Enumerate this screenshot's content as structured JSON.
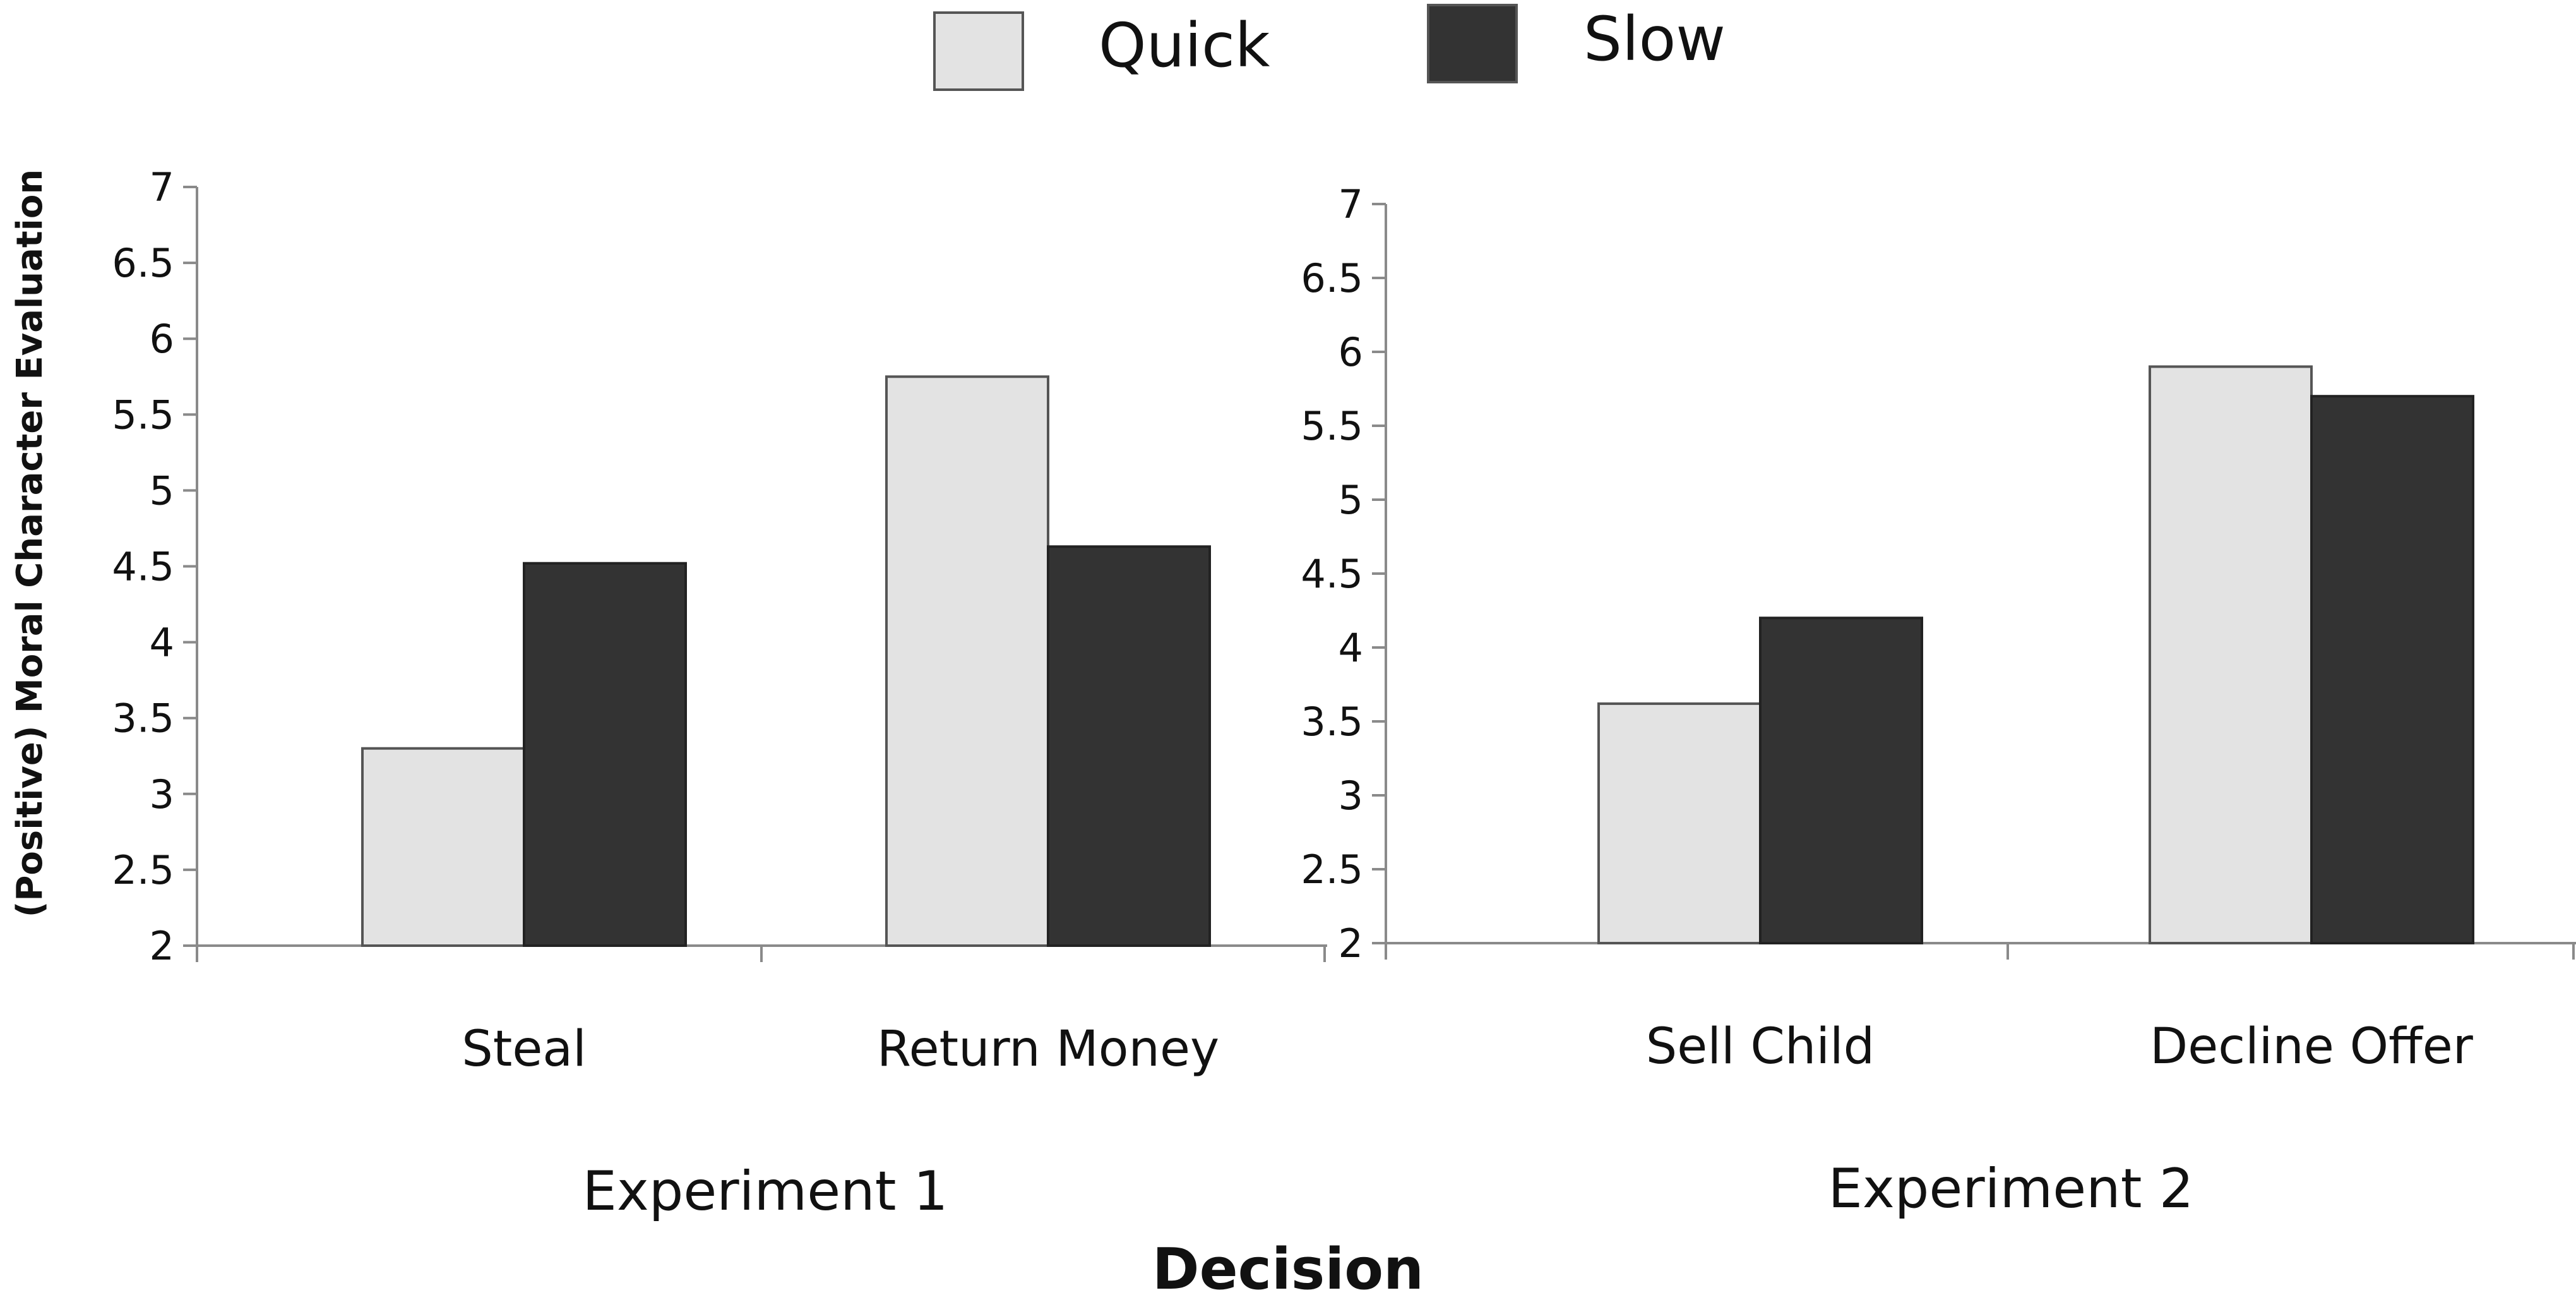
{
  "legend": {
    "items": [
      {
        "label": "Quick",
        "color": "#e3e3e3"
      },
      {
        "label": "Slow",
        "color": "#333333"
      }
    ]
  },
  "y_axis_label": "(Positive) Moral Character Evaluation",
  "x_axis_title": "Decision",
  "chart_data": [
    {
      "type": "bar",
      "group_label": "Experiment 1",
      "categories": [
        "Steal",
        "Return Money"
      ],
      "series": [
        {
          "name": "Quick",
          "values": [
            3.3,
            5.75
          ]
        },
        {
          "name": "Slow",
          "values": [
            4.52,
            4.63
          ]
        }
      ],
      "ylim": [
        2,
        7
      ],
      "yticks": [
        "2",
        "2.5",
        "3",
        "3.5",
        "4",
        "4.5",
        "5",
        "5.5",
        "6",
        "6.5",
        "7"
      ],
      "ylabel": "(Positive) Moral Character Evaluation",
      "xlabel": "Decision",
      "grid": false,
      "legend_position": "top-center"
    },
    {
      "type": "bar",
      "group_label": "Experiment 2",
      "categories": [
        "Sell Child",
        "Decline Offer"
      ],
      "series": [
        {
          "name": "Quick",
          "values": [
            3.62,
            5.9
          ]
        },
        {
          "name": "Slow",
          "values": [
            4.2,
            5.7
          ]
        }
      ],
      "ylim": [
        2,
        7
      ],
      "yticks": [
        "2",
        "2.5",
        "3",
        "3.5",
        "4",
        "4.5",
        "5",
        "5.5",
        "6",
        "6.5",
        "7"
      ],
      "ylabel": "",
      "xlabel": "Decision",
      "grid": false,
      "legend_position": "top-center"
    }
  ]
}
